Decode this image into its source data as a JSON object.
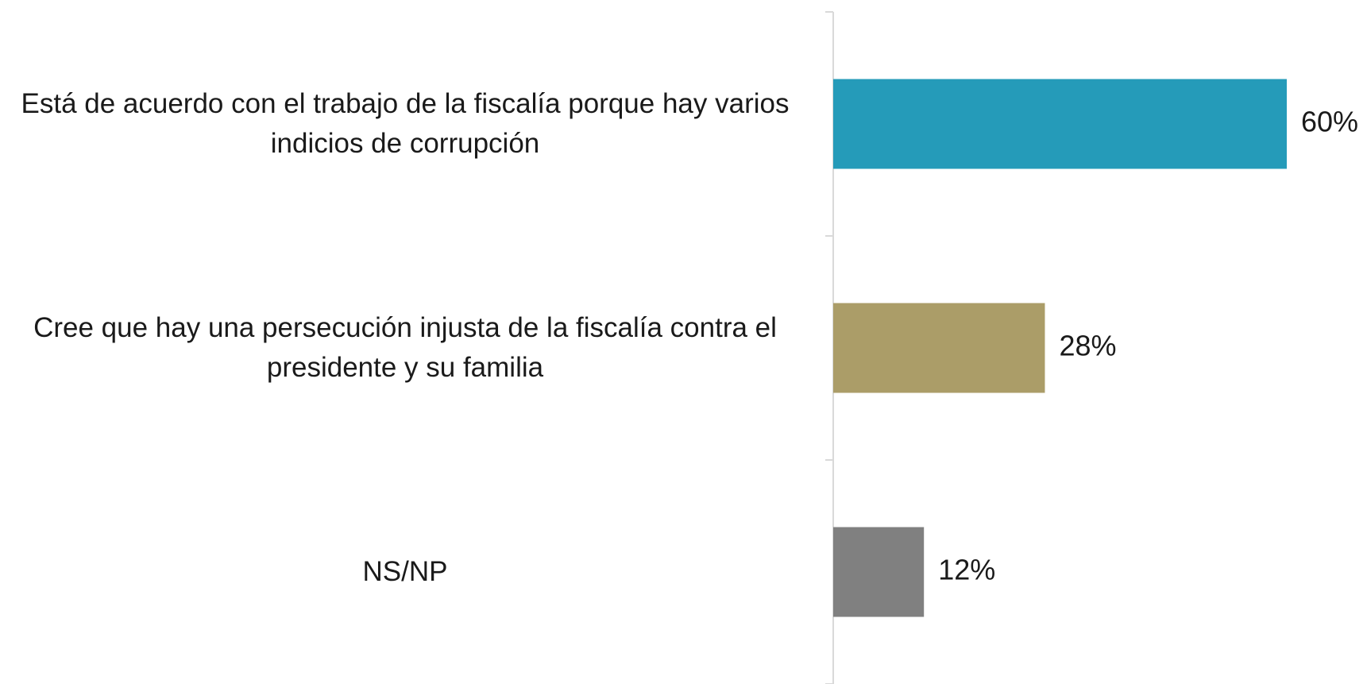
{
  "chart_data": {
    "type": "bar",
    "orientation": "horizontal",
    "categories": [
      "Está de acuerdo con el trabajo de la fiscalía porque hay varios indicios de corrupción",
      "Cree que hay una persecución injusta de la fiscalía contra el presidente y su familia",
      "NS/NP"
    ],
    "values": [
      60,
      28,
      12
    ],
    "value_labels": [
      "60%",
      "28%",
      "12%"
    ],
    "colors": [
      "#259bb9",
      "#ab9d68",
      "#808080"
    ]
  }
}
